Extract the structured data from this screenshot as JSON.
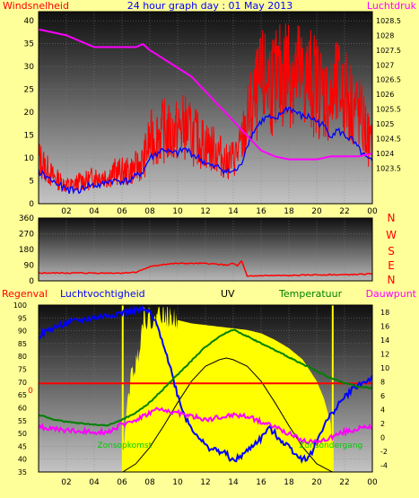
{
  "title": "24 hour graph day : 01 May 2013",
  "colors": {
    "page_bg": "#ffff99",
    "wind": "#ff0000",
    "gust_avg": "#0000ff",
    "pressure": "#ff00ff",
    "wind_dir": "#ff0000",
    "humidity": "#0000ff",
    "temperature": "#008000",
    "dewpoint": "#ff00ff",
    "uv_fill": "#ffff00",
    "solar_theoretical": "#000000",
    "regen": "#ff0000",
    "sun_markers": "#ffff00",
    "label_green": "#00cc00"
  },
  "chart_data": [
    {
      "id": "wind-pressure",
      "type": "line",
      "x_label_ticks": [
        "02",
        "04",
        "06",
        "08",
        "10",
        "12",
        "14",
        "16",
        "18",
        "20",
        "22",
        "00"
      ],
      "xlim": [
        0,
        24
      ],
      "y_left_label": "Windsnelheid",
      "y_right_label": "Luchtdruk",
      "y_left_ticks": [
        0,
        5,
        10,
        15,
        20,
        25,
        30,
        35,
        40
      ],
      "y_left_lim": [
        0,
        42
      ],
      "y_right_ticks": [
        "1023.5",
        "1024",
        "1024.5",
        "1025",
        "1025.5",
        "1026",
        "1026.5",
        "1027",
        "1027.5",
        "1028",
        "1028.5"
      ],
      "y_right_lim": [
        1022.3,
        1028.8
      ],
      "grid": true,
      "series": [
        {
          "axis": "left",
          "color": "#ff0000",
          "noisy": true,
          "x": [
            0,
            0.5,
            1,
            1.5,
            2,
            2.5,
            3,
            3.5,
            4,
            4.5,
            5,
            5.5,
            6,
            6.5,
            7,
            7.5,
            8,
            8.5,
            9,
            9.5,
            10,
            10.5,
            11,
            11.5,
            12,
            12.5,
            13,
            13.5,
            14,
            14.5,
            15,
            15.5,
            16,
            16.5,
            17,
            17.5,
            18,
            18.5,
            19,
            19.5,
            20,
            20.5,
            21,
            21.5,
            22,
            22.5,
            23,
            23.5,
            24
          ],
          "values": [
            10,
            8,
            6,
            5,
            4,
            4,
            5,
            5,
            6,
            6,
            6,
            7,
            7,
            7,
            8,
            9,
            14,
            15,
            16,
            15,
            16,
            17,
            15,
            14,
            13,
            12,
            11,
            9,
            10,
            12,
            18,
            22,
            26,
            27,
            26,
            28,
            30,
            29,
            27,
            27,
            26,
            24,
            22,
            25,
            24,
            22,
            20,
            16,
            12
          ]
        },
        {
          "axis": "left",
          "color": "#0000ff",
          "noisy": false,
          "x": [
            0,
            0.5,
            1,
            1.5,
            2,
            2.5,
            3,
            3.5,
            4,
            4.5,
            5,
            5.5,
            6,
            6.5,
            7,
            7.5,
            8,
            8.5,
            9,
            9.5,
            10,
            10.5,
            11,
            11.5,
            12,
            12.5,
            13,
            13.5,
            14,
            14.5,
            15,
            15.5,
            16,
            16.5,
            17,
            17.5,
            18,
            18.5,
            19,
            19.5,
            20,
            20.5,
            21,
            21.5,
            22,
            22.5,
            23,
            23.5,
            24
          ],
          "values": [
            7,
            6,
            5,
            4,
            3,
            3,
            3,
            4,
            4,
            4,
            5,
            5,
            5,
            5,
            6,
            7,
            10,
            11,
            12,
            11,
            11,
            12,
            11,
            10,
            9,
            8,
            8,
            7,
            7,
            8,
            13,
            16,
            18,
            19,
            18,
            20,
            21,
            20,
            19,
            19,
            18,
            17,
            15,
            16,
            15,
            14,
            12,
            10,
            9
          ]
        },
        {
          "axis": "right",
          "color": "#ff00ff",
          "noisy": false,
          "x": [
            0,
            1,
            2,
            3,
            4,
            5,
            6,
            7,
            7.5,
            8,
            9,
            10,
            11,
            12,
            13,
            14,
            15,
            16,
            17,
            18,
            19,
            20,
            21,
            22,
            23,
            24
          ],
          "values": [
            1028.2,
            1028.1,
            1028.0,
            1027.8,
            1027.6,
            1027.6,
            1027.6,
            1027.6,
            1027.7,
            1027.5,
            1027.2,
            1026.9,
            1026.6,
            1026.1,
            1025.6,
            1025.1,
            1024.6,
            1024.1,
            1023.9,
            1023.8,
            1023.8,
            1023.8,
            1023.9,
            1023.9,
            1023.9,
            1024.0
          ]
        }
      ]
    },
    {
      "id": "wind-direction",
      "type": "line",
      "xlim": [
        0,
        24
      ],
      "y_ticks": [
        0,
        90,
        180,
        270,
        360
      ],
      "y_lim": [
        0,
        360
      ],
      "right_labels": [
        "N",
        "W",
        "S",
        "E",
        "N"
      ],
      "grid": true,
      "series": [
        {
          "color": "#ff0000",
          "x": [
            0,
            2,
            4,
            6,
            7,
            8,
            9,
            10,
            11,
            12,
            13,
            13.5,
            14,
            14.3,
            14.6,
            15,
            16,
            18,
            20,
            22,
            24
          ],
          "values": [
            45,
            45,
            45,
            45,
            50,
            80,
            95,
            100,
            100,
            100,
            95,
            90,
            100,
            85,
            115,
            25,
            30,
            30,
            35,
            35,
            40
          ]
        }
      ]
    },
    {
      "id": "temp-humidity",
      "type": "line",
      "xlim": [
        0,
        24
      ],
      "x_label_ticks": [
        "02",
        "04",
        "06",
        "08",
        "10",
        "12",
        "14",
        "16",
        "18",
        "20",
        "22",
        "00"
      ],
      "labels": [
        "Regenval",
        "Luchtvochtigheid",
        "UV",
        "Temperatuur",
        "Dauwpunt"
      ],
      "y_left_ticks": [
        35,
        40,
        45,
        50,
        55,
        60,
        65,
        70,
        75,
        80,
        85,
        90,
        95,
        100
      ],
      "y_left_lim": [
        35,
        100
      ],
      "y_right_ticks": [
        -4,
        -2,
        0,
        2,
        4,
        6,
        8,
        10,
        12,
        14,
        16,
        18
      ],
      "y_right_lim": [
        -5,
        19
      ],
      "regen_label": "0",
      "sunrise_label": "Zonsopkomst",
      "sunset_label": "Zonsondergang",
      "sunrise_hour": 6.05,
      "sunset_hour": 21.15,
      "grid": true,
      "series": [
        {
          "name": "Luchtvochtigheid",
          "axis": "left",
          "color": "#0000ff",
          "x": [
            0,
            1,
            2,
            3,
            4,
            5,
            6,
            7,
            7.5,
            8,
            8.5,
            9,
            9.5,
            10,
            10.5,
            11,
            11.5,
            12,
            12.5,
            13,
            13.5,
            14,
            14.5,
            15,
            15.5,
            16,
            16.5,
            17,
            17.5,
            18,
            18.5,
            19,
            19.5,
            20,
            20.5,
            21,
            21.5,
            22,
            22.5,
            23,
            23.5,
            24
          ],
          "values": [
            88,
            91,
            93,
            94,
            95,
            96,
            97,
            98,
            98,
            97,
            92,
            85,
            75,
            65,
            57,
            52,
            49,
            45,
            44,
            43,
            42,
            39,
            41,
            43,
            46,
            48,
            52,
            50,
            47,
            45,
            42,
            40,
            41,
            47,
            53,
            57,
            61,
            64,
            67,
            69,
            70,
            72
          ]
        },
        {
          "name": "Temperatuur",
          "axis": "right",
          "color": "#008000",
          "x": [
            0,
            1,
            2,
            3,
            4,
            5,
            6,
            7,
            8,
            9,
            10,
            11,
            12,
            13,
            14,
            15,
            16,
            17,
            18,
            19,
            20,
            21,
            22,
            23,
            24
          ],
          "values": [
            3.2,
            2.6,
            2.2,
            2.0,
            1.8,
            1.7,
            2.5,
            3.5,
            5.0,
            7.0,
            9.0,
            11.0,
            13.0,
            14.5,
            15.5,
            14.5,
            13.5,
            12.5,
            11.5,
            10.5,
            9.5,
            8.5,
            7.8,
            7.3,
            7.0
          ]
        },
        {
          "name": "Dauwpunt",
          "axis": "right",
          "color": "#ff00ff",
          "x": [
            0,
            1,
            2,
            3,
            4,
            5,
            6,
            7,
            8,
            8.5,
            9,
            10,
            11,
            12,
            13,
            14,
            15,
            16,
            17,
            18,
            19,
            20,
            21,
            22,
            23,
            24
          ],
          "values": [
            1.5,
            1.2,
            1.0,
            0.8,
            0.8,
            0.8,
            1.8,
            2.5,
            3.5,
            4.0,
            3.8,
            3.5,
            3.0,
            2.5,
            2.8,
            3.2,
            3.0,
            2.2,
            1.5,
            0.5,
            -0.5,
            -0.8,
            0.0,
            0.8,
            1.2,
            1.5
          ]
        },
        {
          "name": "UV",
          "axis": "uv",
          "color": "#ffff00",
          "filled": true,
          "x": [
            6.0,
            6.4,
            6.8,
            7.0,
            7.3,
            7.6,
            7.8,
            8.0,
            8.3,
            8.6,
            9,
            10,
            11,
            12,
            13,
            14,
            15,
            16,
            17,
            18,
            19,
            20,
            20.5,
            21,
            21.2
          ],
          "values": [
            0,
            45,
            62,
            65,
            80,
            98,
            92,
            95,
            88,
            100,
            95,
            92,
            90,
            89,
            88,
            87,
            86,
            84,
            80,
            75,
            68,
            55,
            45,
            30,
            0
          ]
        },
        {
          "name": "theoretical-solar",
          "axis": "uv",
          "color": "#000000",
          "x": [
            6.05,
            7,
            8,
            9,
            10,
            11,
            12,
            13,
            13.5,
            14,
            15,
            16,
            17,
            18,
            19,
            20,
            21,
            21.15
          ],
          "values": [
            0,
            5,
            15,
            28,
            42,
            55,
            64,
            68,
            69,
            68,
            64,
            55,
            42,
            28,
            15,
            5,
            0.5,
            0
          ]
        }
      ]
    }
  ]
}
